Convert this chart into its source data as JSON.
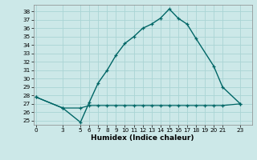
{
  "xlabel": "Humidex (Indice chaleur)",
  "bg_color": "#cce8e8",
  "line_color": "#006666",
  "grid_color": "#aad4d4",
  "x_ticks": [
    0,
    3,
    5,
    6,
    7,
    8,
    9,
    10,
    11,
    12,
    13,
    14,
    15,
    16,
    17,
    18,
    19,
    20,
    21,
    23
  ],
  "ylim": [
    24.5,
    38.8
  ],
  "yticks": [
    25,
    26,
    27,
    28,
    29,
    30,
    31,
    32,
    33,
    34,
    35,
    36,
    37,
    38
  ],
  "xlim": [
    -0.3,
    24.3
  ],
  "series1_x": [
    0,
    3,
    5,
    6,
    7,
    8,
    9,
    10,
    11,
    12,
    13,
    14,
    15,
    16,
    17,
    18,
    20,
    21,
    23
  ],
  "series1_y": [
    27.8,
    26.5,
    24.8,
    27.2,
    29.5,
    31.0,
    32.8,
    34.2,
    35.0,
    36.0,
    36.5,
    37.2,
    38.3,
    37.2,
    36.5,
    34.8,
    31.5,
    29.0,
    27.0
  ],
  "series2_x": [
    0,
    3,
    5,
    6,
    7,
    8,
    9,
    10,
    11,
    12,
    13,
    14,
    15,
    16,
    17,
    18,
    19,
    20,
    21,
    23
  ],
  "series2_y": [
    27.8,
    26.5,
    26.5,
    26.8,
    26.8,
    26.8,
    26.8,
    26.8,
    26.8,
    26.8,
    26.8,
    26.8,
    26.8,
    26.8,
    26.8,
    26.8,
    26.8,
    26.8,
    26.8,
    27.0
  ],
  "tick_fontsize": 5.2,
  "xlabel_fontsize": 6.5
}
